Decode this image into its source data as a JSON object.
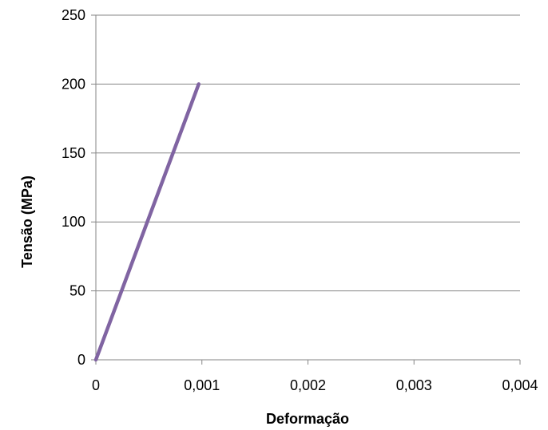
{
  "chart_data": {
    "type": "line",
    "title": "",
    "xlabel": "Deformação",
    "ylabel": "Tensão (MPa)",
    "xlim": [
      0,
      0.004
    ],
    "ylim": [
      0,
      250
    ],
    "x_ticks": [
      0,
      0.001,
      0.002,
      0.003,
      0.004
    ],
    "x_tick_labels": [
      "0",
      "0,001",
      "0,002",
      "0,003",
      "0,004"
    ],
    "y_ticks": [
      0,
      50,
      100,
      150,
      200,
      250
    ],
    "y_tick_labels": [
      "0",
      "50",
      "100",
      "150",
      "200",
      "250"
    ],
    "grid": "horizontal",
    "legend": "none",
    "series": [
      {
        "x": [
          0,
          0.00097
        ],
        "y": [
          0,
          200
        ],
        "color": "#8064A2"
      }
    ]
  }
}
